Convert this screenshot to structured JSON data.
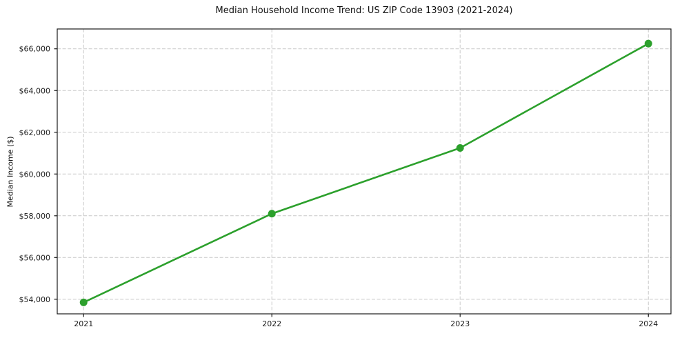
{
  "figure": {
    "background": "#ffffff"
  },
  "chart_data": {
    "type": "line",
    "title": "Median Household Income Trend: US ZIP Code 13903 (2021-2024)",
    "xlabel": "",
    "ylabel": "Median Income ($)",
    "x": [
      2021,
      2022,
      2023,
      2024
    ],
    "values": [
      53850,
      58100,
      61250,
      66250
    ],
    "line_color": "#2ca02c",
    "marker": "circle",
    "marker_color": "#2ca02c",
    "xlim": [
      2020.86,
      2024.12
    ],
    "ylim": [
      53300,
      66950
    ],
    "xticks": [
      2021,
      2022,
      2023,
      2024
    ],
    "xtick_labels": [
      "2021",
      "2022",
      "2023",
      "2024"
    ],
    "yticks": [
      54000,
      56000,
      58000,
      60000,
      62000,
      64000,
      66000
    ],
    "ytick_labels": [
      "$54,000",
      "$56,000",
      "$58,000",
      "$60,000",
      "$62,000",
      "$64,000",
      "$66,000"
    ],
    "grid": true,
    "grid_style": "dashed",
    "grid_color": "#c9c9c9",
    "axis_color": "#1a1a1a",
    "legend_position": "none"
  }
}
